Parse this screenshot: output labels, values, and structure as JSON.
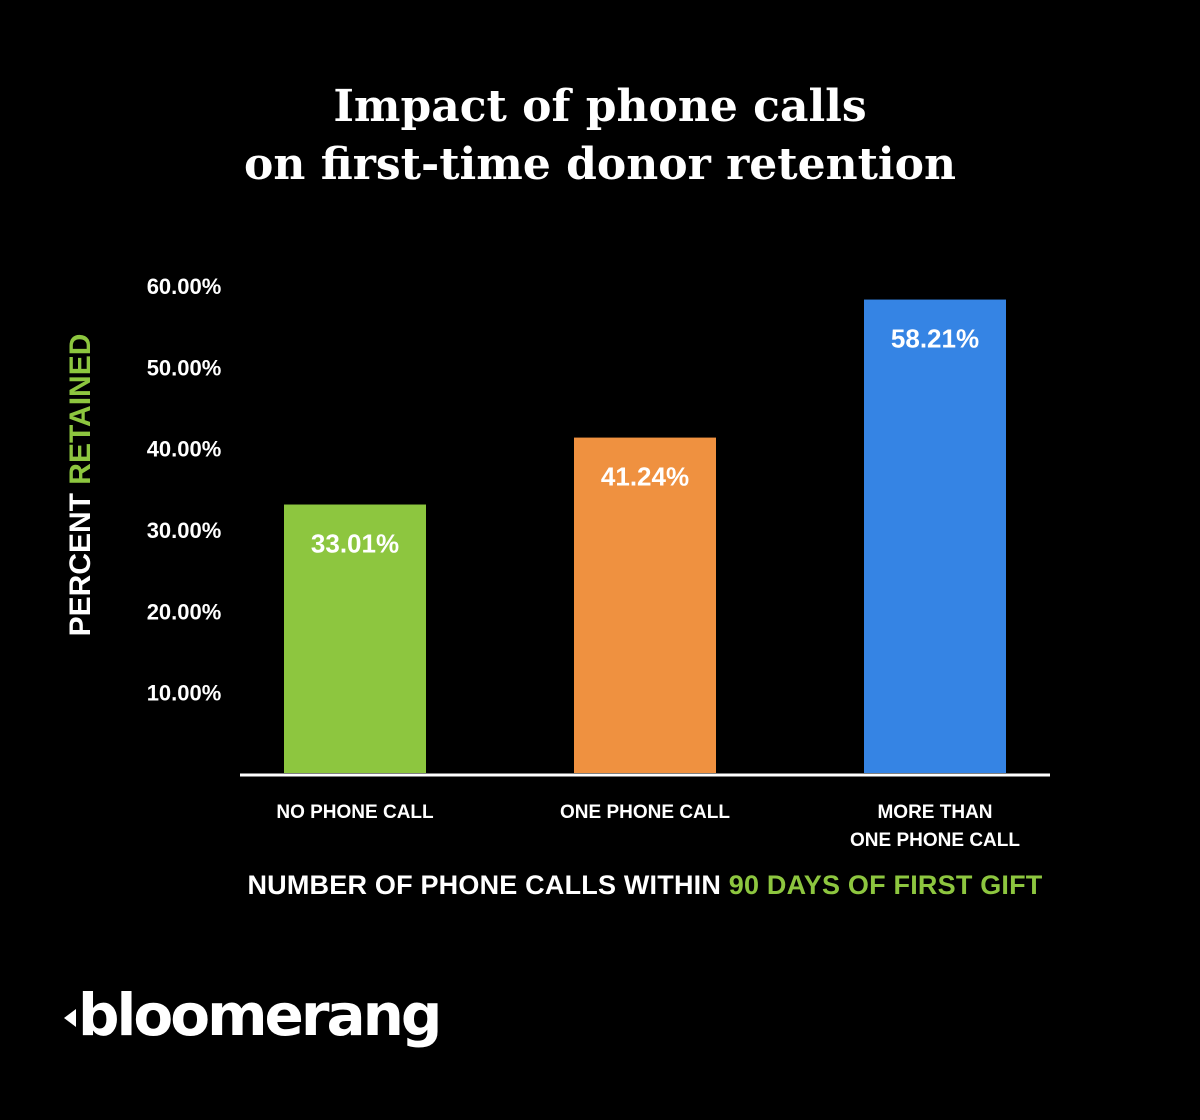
{
  "chart_data": {
    "type": "bar",
    "title": [
      "Impact of phone calls",
      "on first-time donor retention"
    ],
    "categories": [
      [
        "NO PHONE CALL"
      ],
      [
        "ONE PHONE CALL"
      ],
      [
        "MORE THAN",
        "ONE PHONE CALL"
      ]
    ],
    "values": [
      33.01,
      41.24,
      58.21
    ],
    "value_labels": [
      "33.01%",
      "41.24%",
      "58.21%"
    ],
    "colors": [
      "#8dc63f",
      "#ef9140",
      "#3584e4"
    ],
    "y_ticks": [
      10,
      20,
      30,
      40,
      50,
      60
    ],
    "y_tick_labels": [
      "10.00%",
      "20.00%",
      "30.00%",
      "40.00%",
      "50.00%",
      "60.00%"
    ],
    "ylim": [
      0,
      60
    ],
    "ylabel": {
      "prefix": "PERCENT ",
      "highlight": "RETAINED",
      "highlight_color": "#8dc63f"
    },
    "xlabel": {
      "prefix": "NUMBER OF PHONE CALLS WITHIN ",
      "highlight": "90 DAYS OF FIRST GIFT",
      "highlight_color": "#8dc63f"
    },
    "grid": false,
    "legend": "none"
  },
  "brand": {
    "logo_text": "bloomerang"
  }
}
